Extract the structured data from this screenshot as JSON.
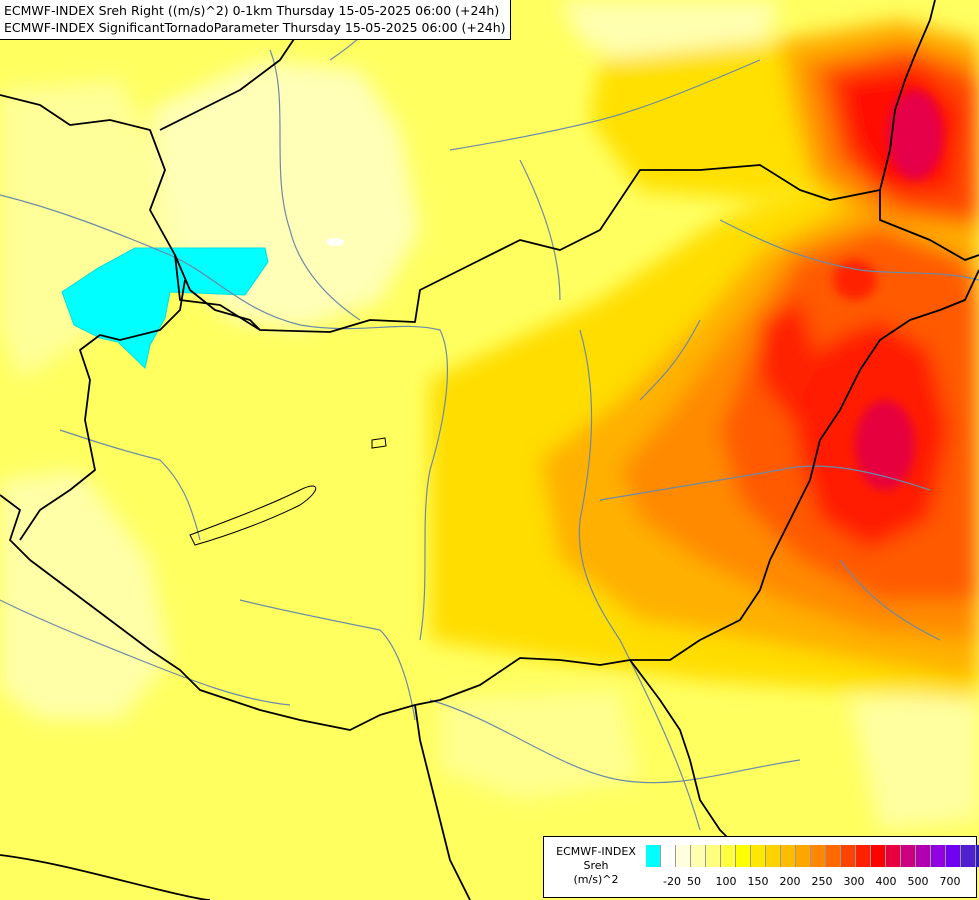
{
  "header": {
    "line1": "ECMWF-INDEX Sreh Right ((m/s)^2) 0-1km Thursday 15-05-2025 06:00 (+24h)",
    "line2": "ECMWF-INDEX SignificantTornadoParameter Thursday 15-05-2025 06:00 (+24h)"
  },
  "legend": {
    "source": "ECMWF-INDEX",
    "variable": "Sreh",
    "unit": "(m/s)^2",
    "colors": [
      "#00ffff",
      "#ffffff",
      "#ffffdd",
      "#ffffb0",
      "#ffff80",
      "#ffff40",
      "#ffff00",
      "#ffe800",
      "#ffd200",
      "#ffbc00",
      "#ffa500",
      "#ff8800",
      "#ff6a00",
      "#ff4400",
      "#ff2200",
      "#ff0000",
      "#e60040",
      "#cc0080",
      "#b000b0",
      "#9000e0",
      "#7000f0",
      "#5020d0",
      "#3020b0",
      "#101080"
    ],
    "ticks": [
      {
        "label": "-20",
        "index": 1
      },
      {
        "label": "50",
        "index": 3
      },
      {
        "label": "100",
        "index": 5
      },
      {
        "label": "150",
        "index": 7
      },
      {
        "label": "200",
        "index": 9
      },
      {
        "label": "250",
        "index": 11
      },
      {
        "label": "300",
        "index": 13
      },
      {
        "label": "400",
        "index": 15
      },
      {
        "label": "500",
        "index": 17
      },
      {
        "label": "700",
        "index": 19
      }
    ]
  }
}
